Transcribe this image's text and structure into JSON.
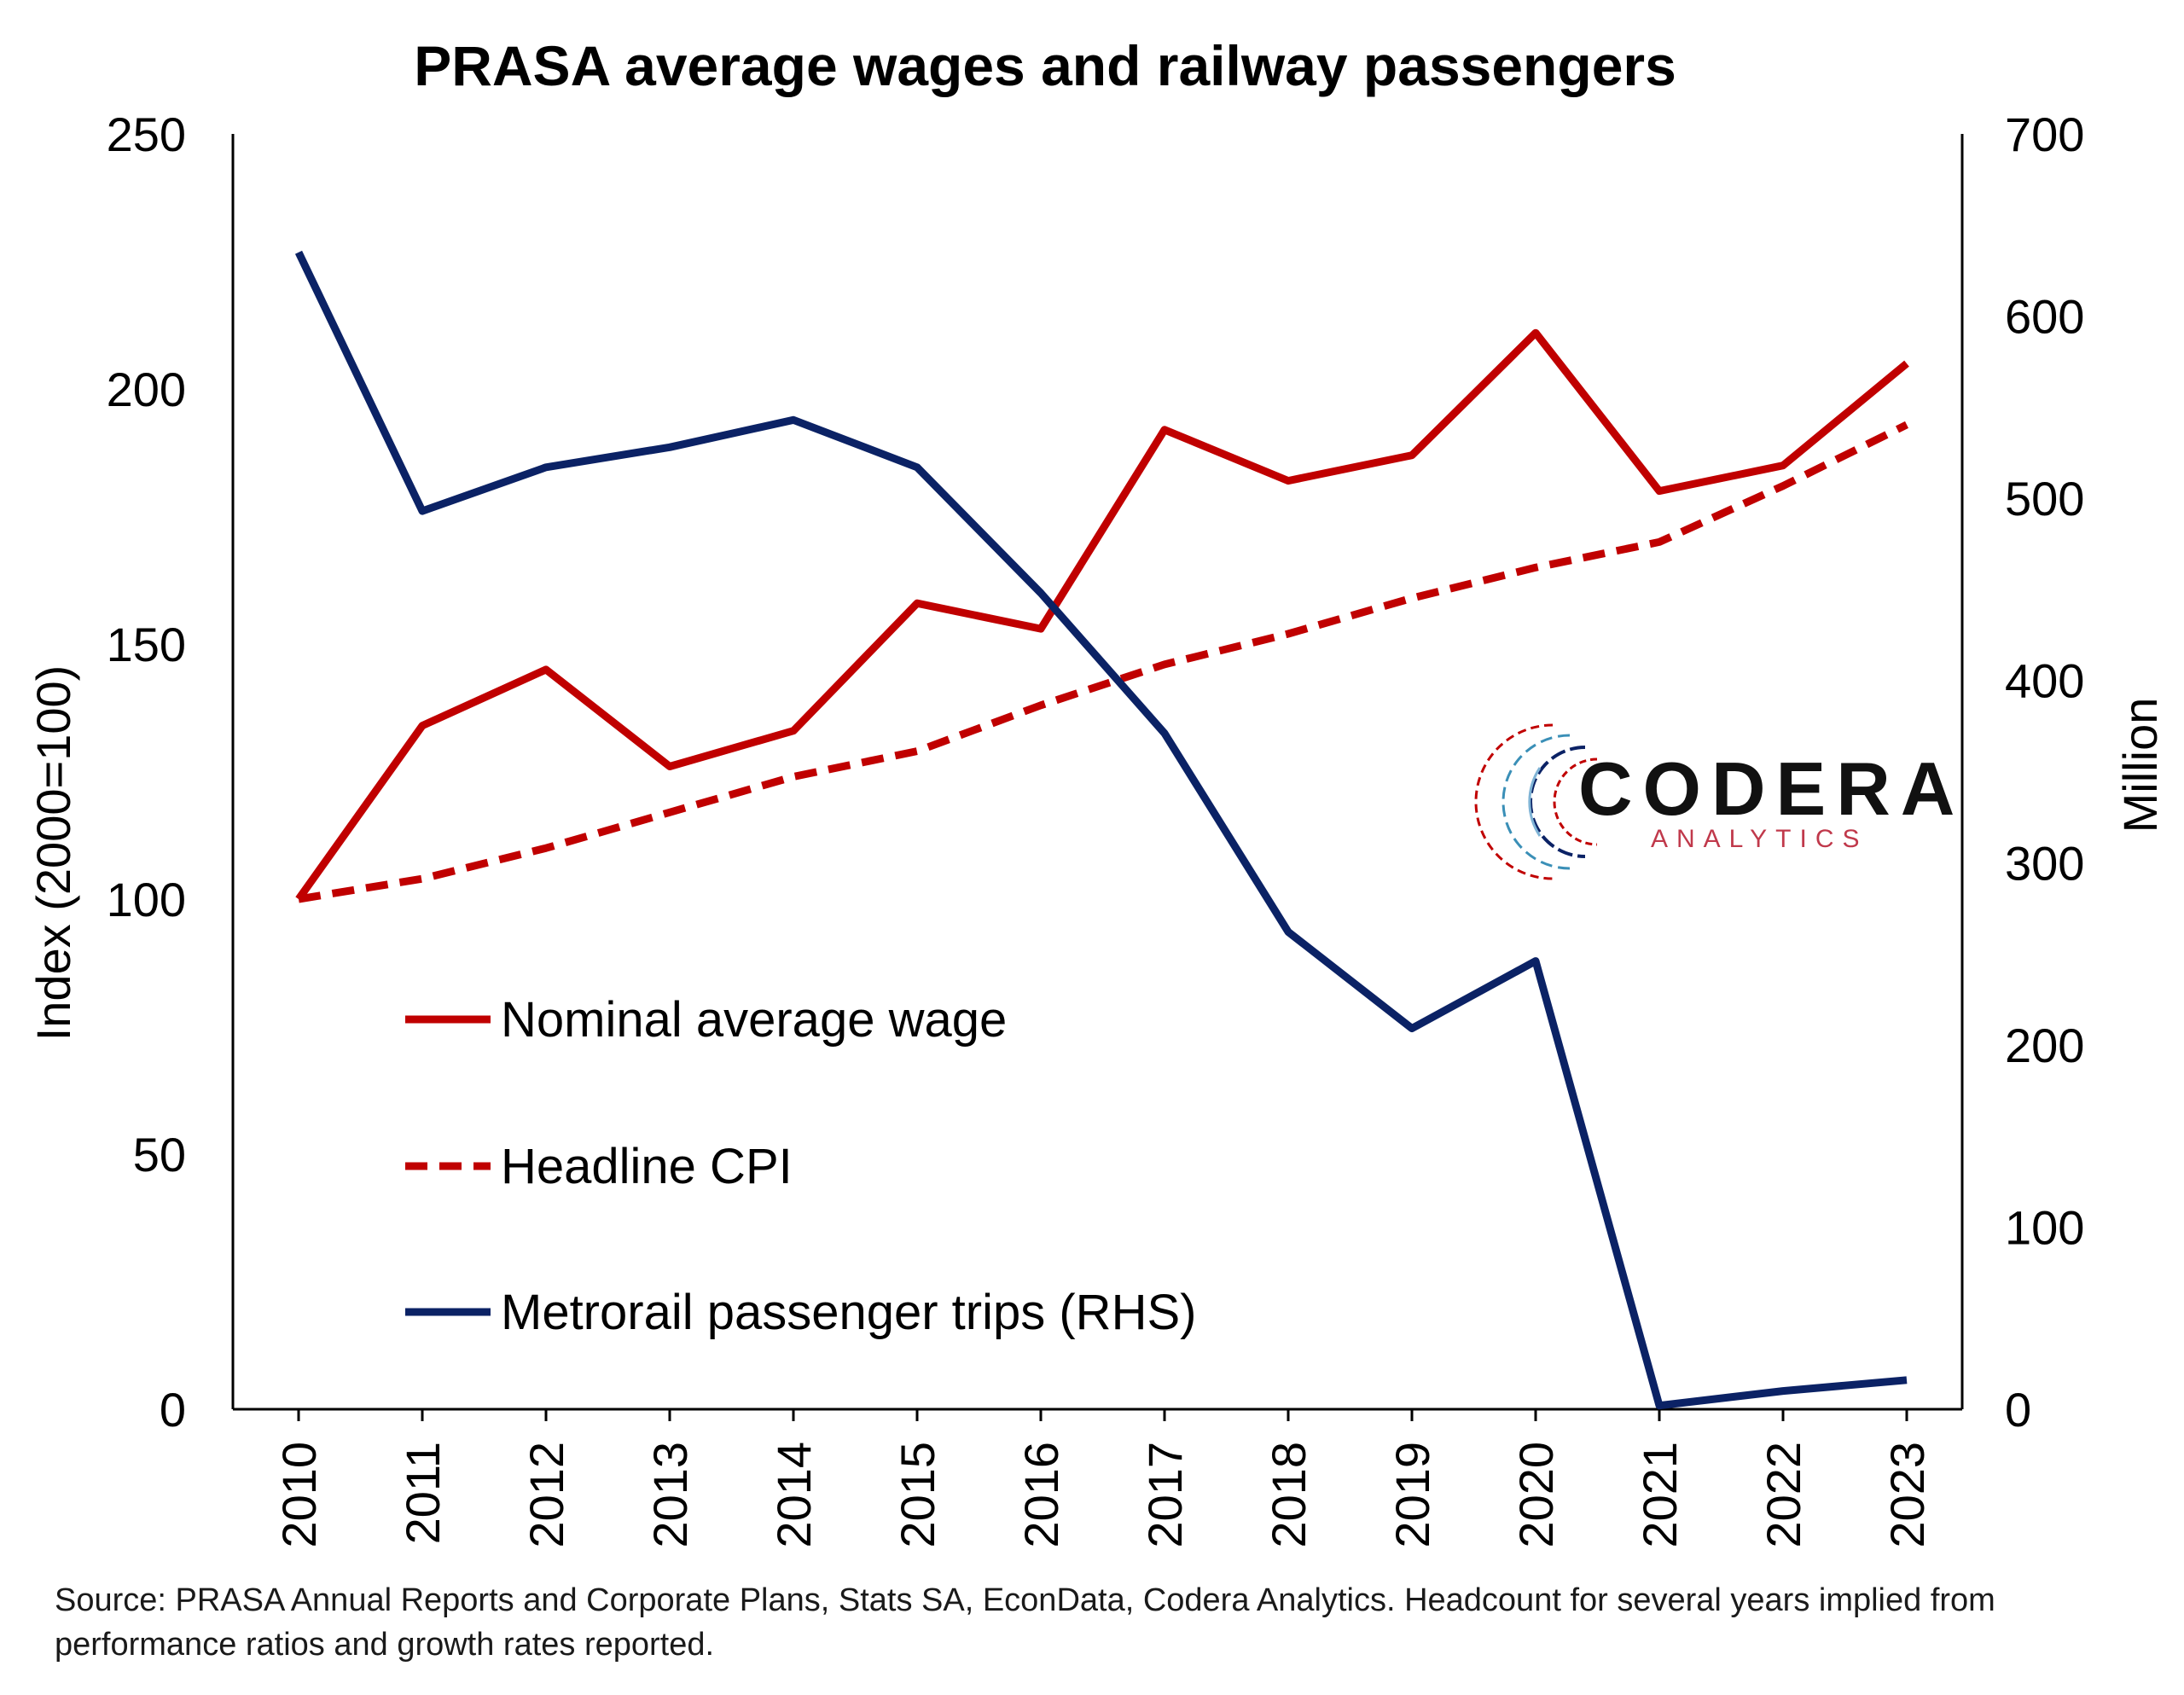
{
  "chart_data": {
    "type": "line",
    "title": "PRASA average wages and railway passengers",
    "categories": [
      "2010",
      "2011",
      "2012",
      "2013",
      "2014",
      "2015",
      "2016",
      "2017",
      "2018",
      "2019",
      "2020",
      "2021",
      "2022",
      "2023"
    ],
    "y_left": {
      "label": "Index (2000=100)",
      "range": [
        0,
        250
      ],
      "ticks": [
        0,
        50,
        100,
        150,
        200,
        250
      ]
    },
    "y_right": {
      "label": "Million",
      "range": [
        0,
        700
      ],
      "ticks": [
        0,
        100,
        200,
        300,
        400,
        500,
        600,
        700
      ]
    },
    "series": [
      {
        "name": "Nominal average wage",
        "axis": "left",
        "style": "solid",
        "color": "#C00000",
        "values": [
          100,
          134,
          145,
          126,
          133,
          158,
          153,
          192,
          182,
          187,
          211,
          180,
          185,
          205
        ]
      },
      {
        "name": "Headline CPI",
        "axis": "left",
        "style": "dashed",
        "color": "#C00000",
        "values": [
          100,
          104,
          110,
          117,
          124,
          129,
          138,
          146,
          152,
          159,
          165,
          170,
          181,
          193
        ]
      },
      {
        "name": "Metrorail passenger trips (RHS)",
        "axis": "right",
        "style": "solid",
        "color": "#0B2265",
        "values": [
          635,
          493,
          517,
          528,
          543,
          517,
          448,
          371,
          262,
          209,
          246,
          2,
          10,
          16
        ]
      }
    ],
    "legend_position": "bottom-left",
    "grid": false
  },
  "logo": {
    "name": "CODERA",
    "tagline": "ANALYTICS",
    "icon": "codera-circle-logo"
  },
  "source": "Source: PRASA Annual Reports and Corporate Plans, Stats SA, EconData, Codera Analytics. Headcount for several years implied from performance ratios and growth rates reported."
}
